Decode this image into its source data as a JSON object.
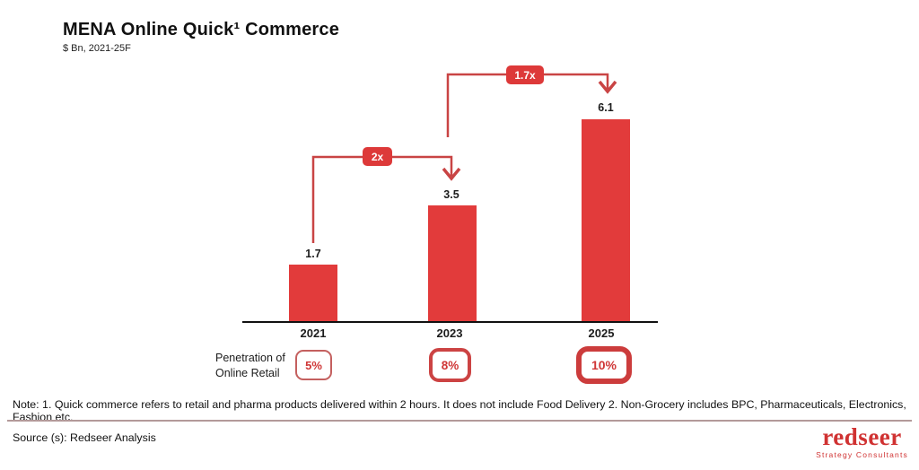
{
  "header": {
    "title": "MENA Online Quick¹ Commerce",
    "subtitle": "$ Bn, 2021-25F"
  },
  "chart_data": {
    "type": "bar",
    "categories": [
      "2021",
      "2023",
      "2025"
    ],
    "values": [
      1.7,
      3.5,
      6.1
    ],
    "title": "MENA Online Quick¹ Commerce",
    "xlabel": "",
    "ylabel": "$ Bn",
    "ylim": [
      0,
      6.5
    ],
    "grid": false,
    "bar_color": "#e23b3b",
    "growth_annotations": [
      {
        "label": "2x",
        "from": "2021",
        "to": "2023"
      },
      {
        "label": "1.7x",
        "from": "2023",
        "to": "2025"
      }
    ],
    "penetration_row": {
      "label": "Penetration of Online Retail",
      "values": [
        "5%",
        "8%",
        "10%"
      ]
    }
  },
  "bars": [
    {
      "year": "2021",
      "value": "1.7",
      "penetration": "5%"
    },
    {
      "year": "2023",
      "value": "3.5",
      "penetration": "8%"
    },
    {
      "year": "2025",
      "value": "6.1",
      "penetration": "10%"
    }
  ],
  "annotations": {
    "mult_1": "2x",
    "mult_2": "1.7x"
  },
  "penetration_label": {
    "line1": "Penetration of",
    "line2": "Online Retail"
  },
  "footer": {
    "note": "Note: 1. Quick commerce refers to retail and pharma products delivered within 2 hours. It does not include Food Delivery 2. Non-Grocery includes BPC, Pharmaceuticals, Electronics, Fashion etc.",
    "source": "Source (s): Redseer Analysis"
  },
  "logo": {
    "name": "redseer",
    "tagline": "Strategy Consultants"
  },
  "colors": {
    "accent_red": "#e23b3b",
    "arrow_red": "#c94444",
    "divider": "#b39a9a",
    "axis": "#111111"
  }
}
